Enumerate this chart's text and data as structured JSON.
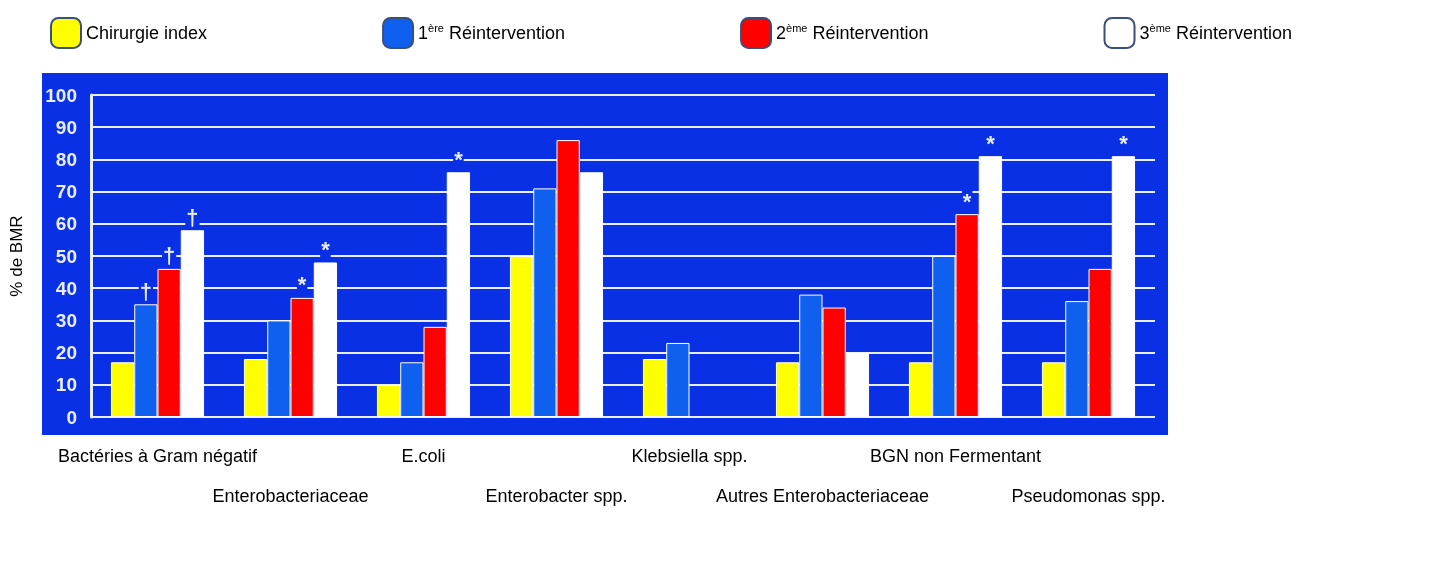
{
  "chart_data": {
    "type": "bar",
    "ylabel": "% de BMR",
    "categories": [
      "Bactéries à Gram négatif",
      "Enterobacteriaceae",
      "E.coli",
      "Enterobacter spp.",
      "Klebsiella spp.",
      "Autres Enterobacteriaceae",
      "BGN non Fermentant",
      "Pseudomonas spp."
    ],
    "series": [
      {
        "name": "Chirurgie index",
        "color": "#ffff00",
        "values": [
          17,
          18,
          10,
          50,
          18,
          17,
          17,
          17
        ]
      },
      {
        "name": "1$^{ère}$ Réintervention",
        "color": "#1060f0",
        "values": [
          35,
          30,
          17,
          71,
          23,
          38,
          50,
          36
        ],
        "value_labels": [
          "†",
          null,
          null,
          null,
          null,
          null,
          null,
          null
        ]
      },
      {
        "name": "2$^{ème}$ Réintervention",
        "color": "#ff0000",
        "values": [
          46,
          37,
          28,
          86,
          null,
          34,
          63,
          46
        ],
        "value_labels": [
          "†",
          "*",
          null,
          null,
          null,
          null,
          "*",
          null
        ]
      },
      {
        "name": "3$^{ème}$ Réintervention",
        "color": "#ffffff",
        "values": [
          58,
          48,
          76,
          76,
          null,
          20,
          81,
          81
        ],
        "value_labels": [
          "†",
          "*",
          "*",
          null,
          null,
          null,
          "*",
          "*"
        ]
      }
    ],
    "ylim": [
      0,
      100
    ],
    "yticks": [
      0,
      10,
      20,
      30,
      40,
      50,
      60,
      70,
      80,
      90,
      100
    ],
    "grid": "y",
    "legend": "top"
  }
}
